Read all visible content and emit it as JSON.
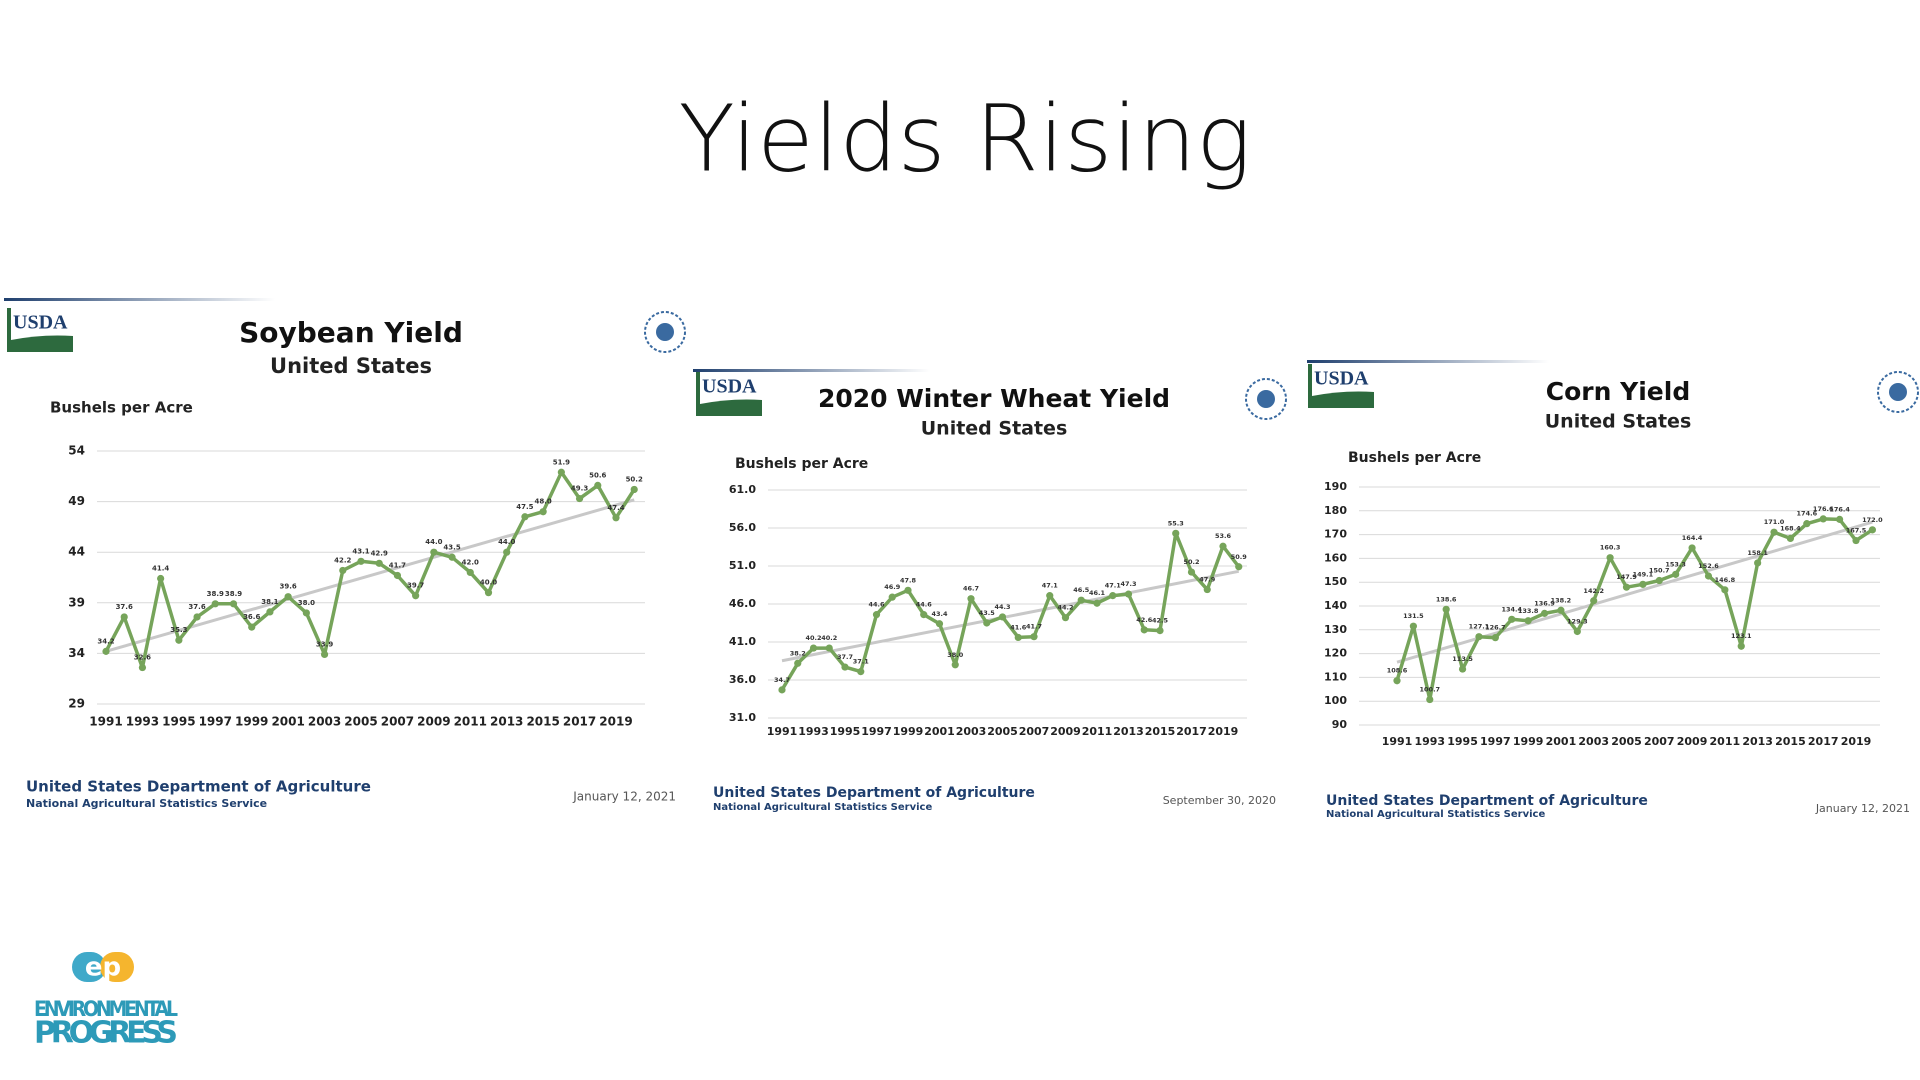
{
  "title": "Yields Rising",
  "logo": {
    "mark": "ep",
    "line1": "ENVIRONMENTAL",
    "line2": "PROGRESS"
  },
  "chart_data": [
    {
      "type": "line",
      "title": "Soybean Yield",
      "subtitle": "United States",
      "y_label": "Bushels per Acre",
      "badge": "USDA",
      "footer": [
        "United States Department of Agriculture",
        "National Agricultural Statistics Service"
      ],
      "date": "January 12, 2021",
      "categories": [
        "1991",
        null,
        "1993",
        null,
        "1995",
        null,
        "1997",
        null,
        "1999",
        null,
        "2001",
        null,
        "2003",
        null,
        "2005",
        null,
        "2007",
        null,
        "2009",
        null,
        "2011",
        null,
        "2013",
        null,
        "2015",
        null,
        "2017",
        null,
        "2019",
        null
      ],
      "values": [
        34.2,
        37.6,
        32.6,
        41.4,
        35.3,
        37.6,
        38.9,
        38.9,
        36.6,
        38.1,
        39.6,
        38.0,
        33.9,
        42.2,
        43.1,
        42.9,
        41.7,
        39.7,
        44.0,
        43.5,
        42.0,
        40.0,
        44.0,
        47.5,
        48.0,
        51.9,
        49.3,
        50.6,
        47.4,
        50.2
      ],
      "value_labels": [
        "34.2",
        "37.6",
        "32.6",
        "41.4",
        "35.3",
        "37.6",
        "38.9",
        "38.9",
        "36.6",
        "38.1",
        "39.6",
        "38.0",
        "33.9",
        "42.2",
        "43.1",
        "42.9",
        "41.7",
        "39.7",
        "44.0",
        "43.5",
        "42.0",
        "40.0",
        "44.0",
        "47.5",
        "48.0",
        "51.9",
        "49.3",
        "50.6",
        "47.4",
        "50.2"
      ],
      "color": "#76a45a",
      "ylim": [
        29,
        54
      ],
      "yticks": [
        29,
        34,
        39,
        44,
        49,
        54
      ],
      "grid": true
    },
    {
      "type": "line",
      "title": "2020 Winter Wheat Yield",
      "subtitle": "United States",
      "y_label": "Bushels per Acre",
      "badge": "USDA",
      "footer": [
        "United States Department of Agriculture",
        "National Agricultural Statistics Service"
      ],
      "date": "September 30, 2020",
      "categories": [
        "1991",
        null,
        "1993",
        null,
        "1995",
        null,
        "1997",
        null,
        "1999",
        null,
        "2001",
        null,
        "2003",
        null,
        "2005",
        null,
        "2007",
        null,
        "2009",
        null,
        "2011",
        null,
        "2013",
        null,
        "2015",
        null,
        "2017",
        null,
        "2019",
        null
      ],
      "values": [
        34.7,
        38.2,
        40.2,
        40.2,
        37.7,
        37.1,
        44.6,
        46.9,
        47.8,
        44.6,
        43.4,
        38.0,
        46.7,
        43.5,
        44.3,
        41.6,
        41.7,
        47.1,
        44.2,
        46.5,
        46.1,
        47.1,
        47.3,
        42.6,
        42.5,
        55.3,
        50.2,
        47.9,
        53.6,
        50.9
      ],
      "value_labels": [
        "34.7",
        "38.2",
        "40.2",
        "40.2",
        "37.7",
        "37.1",
        "44.6",
        "46.9",
        "47.8",
        "44.6",
        "43.4",
        "38.0",
        "46.7",
        "43.5",
        "44.3",
        "41.6",
        "41.7",
        "47.1",
        "44.2",
        "46.5",
        "46.1",
        "47.1",
        "47.3",
        "42.6",
        "42.5",
        "55.3",
        "50.2",
        "47.9",
        "53.6",
        "50.9"
      ],
      "color": "#76a45a",
      "ylim": [
        31,
        61
      ],
      "yticks": [
        {
          "value": 31,
          "label": "31.0"
        },
        {
          "value": 36,
          "label": "36.0"
        },
        {
          "value": 41,
          "label": "41.0"
        },
        {
          "value": 46,
          "label": "46.0"
        },
        {
          "value": 51,
          "label": "51.0"
        },
        {
          "value": 56,
          "label": "56.0"
        },
        {
          "value": 61,
          "label": "61.0"
        }
      ],
      "grid": true
    },
    {
      "type": "line",
      "title": "Corn Yield",
      "subtitle": "United States",
      "y_label": "Bushels per Acre",
      "badge": "USDA",
      "footer": [
        "United States Department of Agriculture",
        "National Agricultural Statistics Service"
      ],
      "date": "January 12, 2021",
      "categories": [
        "1991",
        null,
        "1993",
        null,
        "1995",
        null,
        "1997",
        null,
        "1999",
        null,
        "2001",
        null,
        "2003",
        null,
        "2005",
        null,
        "2007",
        null,
        "2009",
        null,
        "2011",
        null,
        "2013",
        null,
        "2015",
        null,
        "2017",
        null,
        "2019",
        null
      ],
      "values": [
        108.6,
        131.5,
        100.7,
        138.6,
        113.5,
        127.1,
        126.7,
        134.4,
        133.8,
        136.9,
        138.2,
        129.3,
        142.2,
        160.3,
        147.9,
        149.1,
        150.7,
        153.3,
        164.4,
        152.6,
        146.8,
        123.1,
        158.1,
        171.0,
        168.4,
        174.6,
        176.6,
        176.4,
        167.5,
        172.0
      ],
      "value_labels": [
        "108.6",
        "131.5",
        "100.7",
        "138.6",
        "113.5",
        "127.1",
        "126.7",
        "134.4",
        "133.8",
        "136.9",
        "138.2",
        "129.3",
        "142.2",
        "160.3",
        "147.9",
        "149.1",
        "150.7",
        "153.3",
        "164.4",
        "152.6",
        "146.8",
        "123.1",
        "158.1",
        "171.0",
        "168.4",
        "174.6",
        "176.6",
        "176.4",
        "167.5",
        "172.0"
      ],
      "color": "#76a45a",
      "ylim": [
        90,
        190
      ],
      "yticks": [
        90,
        100,
        110,
        120,
        130,
        140,
        150,
        160,
        170,
        180,
        190
      ],
      "grid": true
    }
  ]
}
